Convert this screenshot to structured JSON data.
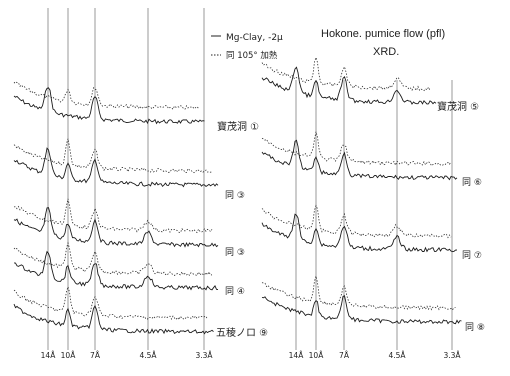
{
  "chart_data": {
    "type": "line",
    "title": "Hokone. pumice flow (pfl)",
    "subtitle": "XRD.",
    "legend": {
      "placement": "top-center",
      "entries": [
        {
          "label": "Mg-Clay, -2μ",
          "style": "solid"
        },
        {
          "label": "同 105° 加熱",
          "style": "dotted"
        }
      ]
    },
    "xlabel": "",
    "ylabel": "",
    "grid": false,
    "panels": [
      {
        "name": "left",
        "x_ticks": [
          "14Å",
          "10Å",
          "7Å",
          "4.5Å",
          "3.3Å"
        ],
        "traces": [
          {
            "label": "寶茂洞 ①",
            "peaks": [
              "14Å",
              "7Å"
            ]
          },
          {
            "label": "同 ③",
            "peaks": [
              "14Å",
              "10Å",
              "7Å"
            ]
          },
          {
            "label": "同 ③",
            "peaks": [
              "14Å",
              "10Å",
              "7Å",
              "4.5Å"
            ]
          },
          {
            "label": "同 ④",
            "peaks": [
              "14Å",
              "10Å",
              "7Å",
              "4.5Å"
            ]
          },
          {
            "label": "五稜ノロ ⑨",
            "peaks": [
              "10Å",
              "7Å"
            ]
          }
        ]
      },
      {
        "name": "right",
        "x_ticks": [
          "14Å",
          "10Å",
          "7Å",
          "4.5Å",
          "3.3Å"
        ],
        "traces": [
          {
            "label": "寶茂洞 ⑤",
            "peaks": [
              "14Å",
              "10Å",
              "7Å",
              "4.5Å"
            ]
          },
          {
            "label": "同 ⑥",
            "peaks": [
              "14Å",
              "10Å",
              "7Å"
            ]
          },
          {
            "label": "同 ⑦",
            "peaks": [
              "14Å",
              "10Å",
              "7Å",
              "4.5Å"
            ]
          },
          {
            "label": "同 ⑧",
            "peaks": [
              "10Å",
              "7Å"
            ]
          }
        ]
      }
    ]
  }
}
